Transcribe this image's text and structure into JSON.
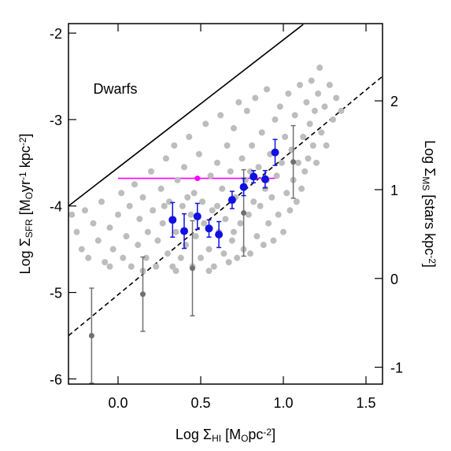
{
  "chart_data": {
    "type": "scatter",
    "xlabel": [
      [
        "Log Σ",
        ""
      ],
      [
        "HI",
        "sub"
      ],
      [
        " [M",
        ""
      ],
      [
        "O",
        "sub"
      ],
      [
        "pc",
        ""
      ],
      [
        "-2",
        "sup"
      ],
      [
        "]",
        ""
      ]
    ],
    "ylabel": [
      [
        "Log Σ",
        ""
      ],
      [
        "SFR",
        "sub"
      ],
      [
        " [M",
        ""
      ],
      [
        "O",
        "sub"
      ],
      [
        "yr",
        ""
      ],
      [
        "-1",
        "sup"
      ],
      [
        " kpc",
        ""
      ],
      [
        "-2",
        "sup"
      ],
      [
        "]",
        ""
      ]
    ],
    "y2label": [
      [
        "Log Σ",
        ""
      ],
      [
        "MS",
        "sub"
      ],
      [
        " [stars kpc",
        ""
      ],
      [
        "-2",
        "sup"
      ],
      [
        "]",
        ""
      ]
    ],
    "annotation": {
      "text": "Dwarfs",
      "x": -0.15,
      "y": -2.7
    },
    "xlim": [
      -0.3,
      1.6
    ],
    "ylim": [
      -6.06,
      -1.89
    ],
    "y2lim": [
      -1.19,
      2.87
    ],
    "xticks": [
      {
        "value": 0,
        "label": "0.0"
      },
      0.5,
      {
        "value": 1,
        "label": "1.0"
      },
      1.5
    ],
    "yticks": [
      -6,
      -5,
      -4,
      -3,
      -2
    ],
    "y2ticks": [
      -1,
      0,
      1,
      2
    ],
    "lines": [
      {
        "x": [
          -0.3,
          1.12
        ],
        "y": [
          -4.0,
          -1.9
        ],
        "color": "#000000",
        "style": "solid"
      },
      {
        "x": [
          -0.3,
          1.6
        ],
        "y": [
          -5.5,
          -2.5
        ],
        "color": "#000000",
        "style": "dashed"
      },
      {
        "x": [
          0,
          0.95
        ],
        "y": [
          -3.68,
          -3.68
        ],
        "color": "#ff00ff",
        "style": "solid"
      }
    ],
    "series": [
      {
        "color": "#bdbdbd",
        "radius": 4,
        "x": [
          -0.28,
          -0.25,
          -0.22,
          -0.2,
          -0.18,
          -0.15,
          -0.12,
          -0.1,
          -0.08,
          -0.05,
          -0.03,
          0.0,
          0.02,
          0.03,
          0.05,
          0.07,
          0.08,
          0.1,
          0.12,
          0.13,
          0.15,
          0.17,
          0.18,
          0.2,
          0.21,
          0.23,
          0.24,
          0.26,
          0.27,
          0.29,
          0.3,
          0.31,
          0.33,
          0.34,
          0.35,
          0.36,
          0.38,
          0.39,
          0.4,
          0.41,
          0.43,
          0.44,
          0.45,
          0.46,
          0.47,
          0.49,
          0.5,
          0.51,
          0.52,
          0.53,
          0.55,
          0.56,
          0.57,
          0.58,
          0.6,
          0.61,
          0.62,
          0.63,
          0.64,
          0.65,
          0.66,
          0.67,
          0.68,
          0.69,
          0.7,
          0.71,
          0.72,
          0.73,
          0.74,
          0.75,
          0.76,
          0.77,
          0.78,
          0.79,
          0.8,
          0.81,
          0.82,
          0.83,
          0.84,
          0.85,
          0.86,
          0.87,
          0.88,
          0.89,
          0.9,
          0.91,
          0.92,
          0.93,
          0.94,
          0.95,
          0.96,
          0.97,
          0.98,
          0.99,
          1.0,
          1.01,
          1.02,
          1.03,
          1.04,
          1.05,
          1.06,
          1.07,
          1.08,
          1.09,
          1.1,
          1.11,
          1.12,
          1.13,
          1.14,
          1.15,
          1.16,
          1.17,
          1.18,
          1.19,
          1.2,
          1.21,
          1.22,
          1.23,
          1.25,
          1.26,
          1.28,
          1.3,
          1.32,
          1.35,
          -0.05,
          0.15,
          0.35,
          0.55,
          0.28,
          0.42,
          0.6,
          0.7,
          0.8,
          0.9
        ],
        "values": [
          -4.1,
          -4.3,
          -4.5,
          -4.05,
          -4.6,
          -4.2,
          -4.4,
          -3.95,
          -4.65,
          -4.25,
          -4.5,
          -4.1,
          -3.85,
          -4.6,
          -4.35,
          -4.0,
          -4.7,
          -3.75,
          -4.45,
          -4.15,
          -3.9,
          -4.6,
          -4.3,
          -3.6,
          -4.05,
          -4.7,
          -4.4,
          -3.8,
          -4.2,
          -3.45,
          -4.55,
          -3.95,
          -4.7,
          -3.3,
          -4.3,
          -3.7,
          -4.6,
          -4.0,
          -3.55,
          -4.45,
          -3.2,
          -4.1,
          -4.7,
          -3.85,
          -4.35,
          -3.4,
          -4.6,
          -3.95,
          -4.2,
          -3.05,
          -4.5,
          -3.65,
          -4.05,
          -4.7,
          -3.5,
          -4.3,
          -2.95,
          -3.8,
          -4.55,
          -4.15,
          -3.3,
          -4.65,
          -3.6,
          -4.4,
          -3.1,
          -3.9,
          -4.6,
          -2.8,
          -4.2,
          -3.45,
          -4.5,
          -3.7,
          -2.9,
          -4.1,
          -4.55,
          -3.3,
          -3.95,
          -2.75,
          -4.35,
          -3.55,
          -4.0,
          -3.15,
          -4.45,
          -3.8,
          -2.65,
          -4.2,
          -3.4,
          -3.9,
          -4.4,
          -3.0,
          -3.65,
          -4.1,
          -2.85,
          -3.5,
          -4.3,
          -3.2,
          -3.85,
          -2.7,
          -4.05,
          -3.35,
          -3.7,
          -2.95,
          -3.95,
          -3.5,
          -2.6,
          -3.8,
          -3.2,
          -3.6,
          -2.8,
          -3.45,
          -3.05,
          -2.55,
          -3.3,
          -2.9,
          -3.5,
          -2.7,
          -2.4,
          -3.15,
          -2.85,
          -3.3,
          -2.6,
          -3.0,
          -2.75,
          -2.9,
          -4.7,
          -4.75,
          -4.75,
          -4.75,
          -4.0,
          -3.9,
          -4.0,
          -4.3,
          -3.6,
          -3.7
        ]
      },
      {
        "color": "#707070",
        "radius": 3.5,
        "x": [
          -0.16,
          0.15,
          0.45,
          0.76,
          1.06
        ],
        "values": [
          -5.5,
          -5.02,
          -4.72,
          -4.08,
          -3.49
        ],
        "errors": [
          0.55,
          0.43,
          0.55,
          0.5,
          0.42
        ]
      },
      {
        "color": "#1010e0",
        "radius": 5,
        "x": [
          0.33,
          0.4,
          0.48,
          0.55,
          0.61,
          0.69,
          0.76,
          0.82,
          0.89,
          0.95
        ],
        "values": [
          -4.16,
          -4.29,
          -4.12,
          -4.26,
          -4.33,
          -3.93,
          -3.78,
          -3.66,
          -3.69,
          -3.38
        ],
        "errors": [
          0.2,
          0.2,
          0.15,
          0.1,
          0.15,
          0.1,
          0.1,
          0.07,
          0.1,
          0.15
        ]
      },
      {
        "color": "#ff00ff",
        "radius": 3.5,
        "x": [
          0.48
        ],
        "values": [
          -3.68
        ]
      }
    ]
  }
}
